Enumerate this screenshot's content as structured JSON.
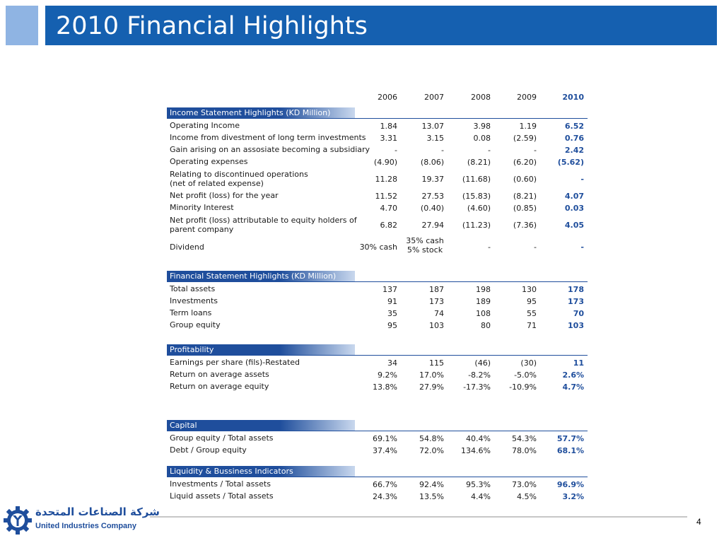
{
  "title": "2010 Financial Highlights",
  "years": [
    "2006",
    "2007",
    "2008",
    "2009",
    "2010"
  ],
  "income": {
    "title": "Income Statement Highlights (KD Million)",
    "rows": [
      {
        "label": "Operating Income",
        "v": [
          "1.84",
          "13.07",
          "3.98",
          "1.19",
          "6.52"
        ]
      },
      {
        "label": "Income from divestment of long term investments",
        "v": [
          "3.31",
          "3.15",
          "0.08",
          "(2.59)",
          "0.76"
        ]
      },
      {
        "label": "Gain arising on an assosiate becoming a subsidiary",
        "v": [
          "-",
          "-",
          "-",
          "-",
          "2.42"
        ]
      },
      {
        "label": "Operating expenses",
        "v": [
          "(4.90)",
          "(8.06)",
          "(8.21)",
          "(6.20)",
          "(5.62)"
        ]
      },
      {
        "label_1": "Relating to discontinued operations",
        "label_2": "(net of related expense)",
        "v": [
          "11.28",
          "19.37",
          "(11.68)",
          "(0.60)",
          "-"
        ]
      },
      {
        "label": "Net profit (loss) for the year",
        "v": [
          "11.52",
          "27.53",
          "(15.83)",
          "(8.21)",
          "4.07"
        ]
      },
      {
        "label": "Minority Interest",
        "v": [
          "4.70",
          "(0.40)",
          "(4.60)",
          "(0.85)",
          "0.03"
        ]
      },
      {
        "label_1": "Net profit (loss) attributable to equity holders of",
        "label_2": "parent company",
        "v": [
          "6.82",
          "27.94",
          "(11.23)",
          "(7.36)",
          "4.05"
        ]
      },
      {
        "label": "Dividend",
        "v": [
          "30% cash",
          "",
          "-",
          "-",
          "-"
        ],
        "v2_1": "35% cash",
        "v2_2": "5% stock"
      }
    ]
  },
  "financial": {
    "title": "Financial Statement Highlights (KD Million)",
    "rows": [
      {
        "label": "Total assets",
        "v": [
          "137",
          "187",
          "198",
          "130",
          "178"
        ]
      },
      {
        "label": "Investments",
        "v": [
          "91",
          "173",
          "189",
          "95",
          "173"
        ]
      },
      {
        "label": "Term loans",
        "v": [
          "35",
          "74",
          "108",
          "55",
          "70"
        ]
      },
      {
        "label": "Group equity",
        "v": [
          "95",
          "103",
          "80",
          "71",
          "103"
        ]
      }
    ]
  },
  "profitability": {
    "title": "Profitability",
    "rows": [
      {
        "label": "Earnings per share (fils)-Restated",
        "v": [
          "34",
          "115",
          "(46)",
          "(30)",
          "11"
        ]
      },
      {
        "label": "Return on average assets",
        "v": [
          "9.2%",
          "17.0%",
          "-8.2%",
          "-5.0%",
          "2.6%"
        ]
      },
      {
        "label": "Return on average equity",
        "v": [
          "13.8%",
          "27.9%",
          "-17.3%",
          "-10.9%",
          "4.7%"
        ]
      }
    ]
  },
  "capital": {
    "title": "Capital",
    "rows": [
      {
        "label": "Group equity / Total assets",
        "v": [
          "69.1%",
          "54.8%",
          "40.4%",
          "54.3%",
          "57.7%"
        ]
      },
      {
        "label": "Debt / Group equity",
        "v": [
          "37.4%",
          "72.0%",
          "134.6%",
          "78.0%",
          "68.1%"
        ]
      }
    ]
  },
  "liquidity": {
    "title": "Liquidity & Bussiness Indicators",
    "rows": [
      {
        "label": "Investments / Total assets",
        "v": [
          "66.7%",
          "92.4%",
          "95.3%",
          "73.0%",
          "96.9%"
        ]
      },
      {
        "label": "Liquid assets / Total assets",
        "v": [
          "24.3%",
          "13.5%",
          "4.4%",
          "4.5%",
          "3.2%"
        ]
      }
    ]
  },
  "footer": {
    "company_arabic": "شركة الصناعات المتحدة",
    "company_english": "United Industries Company",
    "page_number": "4"
  },
  "colors": {
    "title_bar": "#1560b0",
    "accent": "#1f4e9c",
    "title_square": "#8fb4e3"
  },
  "icons": {
    "logo": "gear-logo-icon"
  }
}
